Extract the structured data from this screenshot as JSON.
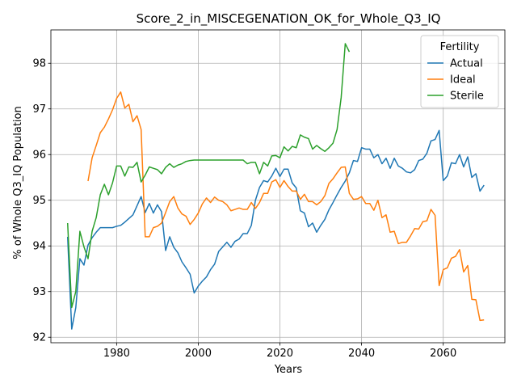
{
  "chart_data": {
    "type": "line",
    "title": "Score_2_in_MISCEGENATION_OK_for_Whole_Q3_IQ",
    "xlabel": "Years",
    "ylabel": "% of Whole Q3_IQ Population",
    "xlim": [
      1963.9,
      2075.1
    ],
    "ylim": [
      91.88,
      98.73
    ],
    "xticks": [
      1980,
      2000,
      2020,
      2040,
      2060
    ],
    "yticks": [
      92,
      93,
      94,
      95,
      96,
      97,
      98
    ],
    "grid": true,
    "legend": {
      "title": "Fertility",
      "position": "top-right"
    },
    "colors": {
      "Actual": "#1f77b4",
      "Ideal": "#ff7f0e",
      "Sterile": "#2ca02c"
    },
    "series": [
      {
        "name": "Actual",
        "x": [
          1968,
          1969,
          1970,
          1971,
          1972,
          1973,
          1974,
          1975,
          1976,
          1977,
          1978,
          1979,
          1980,
          1981,
          1982,
          1983,
          1984,
          1985,
          1986,
          1987,
          1988,
          1989,
          1990,
          1991,
          1992,
          1993,
          1994,
          1995,
          1996,
          1997,
          1998,
          1999,
          2000,
          2001,
          2002,
          2003,
          2004,
          2005,
          2006,
          2007,
          2008,
          2009,
          2010,
          2011,
          2012,
          2013,
          2014,
          2015,
          2016,
          2017,
          2018,
          2019,
          2020,
          2021,
          2022,
          2023,
          2024,
          2025,
          2026,
          2027,
          2028,
          2029,
          2030,
          2031,
          2032,
          2033,
          2034,
          2035,
          2036,
          2037,
          2038,
          2039,
          2040,
          2041,
          2042,
          2043,
          2044,
          2045,
          2046,
          2047,
          2048,
          2049,
          2050,
          2051,
          2052,
          2053,
          2054,
          2055,
          2056,
          2057,
          2058,
          2059,
          2060,
          2061,
          2062,
          2063,
          2064,
          2065,
          2066,
          2067,
          2068,
          2069,
          2070
        ],
        "values": [
          94.2,
          92.18,
          92.65,
          93.72,
          93.58,
          94.02,
          94.18,
          94.3,
          94.4,
          94.4,
          94.4,
          94.4,
          94.43,
          94.45,
          94.52,
          94.6,
          94.68,
          94.88,
          95.08,
          94.73,
          94.93,
          94.72,
          94.9,
          94.75,
          93.9,
          94.2,
          93.97,
          93.85,
          93.65,
          93.52,
          93.38,
          92.97,
          93.12,
          93.23,
          93.32,
          93.48,
          93.6,
          93.88,
          93.98,
          94.08,
          93.97,
          94.1,
          94.15,
          94.27,
          94.27,
          94.45,
          95.0,
          95.28,
          95.43,
          95.4,
          95.53,
          95.7,
          95.52,
          95.68,
          95.68,
          95.38,
          95.27,
          94.77,
          94.72,
          94.42,
          94.5,
          94.3,
          94.45,
          94.58,
          94.79,
          94.95,
          95.12,
          95.28,
          95.42,
          95.6,
          95.87,
          95.85,
          96.15,
          96.12,
          96.12,
          95.93,
          96.0,
          95.8,
          95.92,
          95.7,
          95.92,
          95.75,
          95.7,
          95.62,
          95.6,
          95.67,
          95.87,
          95.9,
          96.03,
          96.3,
          96.33,
          96.53,
          95.43,
          95.53,
          95.82,
          95.8,
          96.0,
          95.73,
          95.95,
          95.5,
          95.58,
          95.2,
          95.33
        ]
      },
      {
        "name": "Ideal",
        "x": [
          1973,
          1974,
          1975,
          1976,
          1977,
          1978,
          1979,
          1980,
          1981,
          1982,
          1983,
          1984,
          1985,
          1986,
          1987,
          1988,
          1989,
          1990,
          1991,
          1992,
          1993,
          1994,
          1995,
          1996,
          1997,
          1998,
          1999,
          2000,
          2001,
          2002,
          2003,
          2004,
          2005,
          2006,
          2007,
          2008,
          2009,
          2010,
          2011,
          2012,
          2013,
          2014,
          2015,
          2016,
          2017,
          2018,
          2019,
          2020,
          2021,
          2022,
          2023,
          2024,
          2025,
          2026,
          2027,
          2028,
          2029,
          2030,
          2031,
          2032,
          2033,
          2034,
          2035,
          2036,
          2037,
          2038,
          2039,
          2040,
          2041,
          2042,
          2043,
          2044,
          2045,
          2046,
          2047,
          2048,
          2049,
          2050,
          2051,
          2052,
          2053,
          2054,
          2055,
          2056,
          2057,
          2058,
          2059,
          2060,
          2061,
          2062,
          2063,
          2064,
          2065,
          2066,
          2067,
          2068,
          2069,
          2070
        ],
        "values": [
          95.42,
          95.93,
          96.2,
          96.48,
          96.6,
          96.78,
          96.98,
          97.23,
          97.37,
          97.02,
          97.1,
          96.72,
          96.85,
          96.55,
          94.2,
          94.2,
          94.4,
          94.43,
          94.5,
          94.73,
          94.97,
          95.08,
          94.83,
          94.7,
          94.65,
          94.47,
          94.58,
          94.72,
          94.92,
          95.05,
          94.95,
          95.07,
          95.0,
          94.97,
          94.9,
          94.77,
          94.8,
          94.83,
          94.8,
          94.8,
          94.95,
          94.82,
          94.95,
          95.15,
          95.15,
          95.4,
          95.45,
          95.28,
          95.43,
          95.3,
          95.2,
          95.2,
          95.02,
          95.13,
          94.97,
          94.97,
          94.9,
          94.97,
          95.1,
          95.37,
          95.47,
          95.6,
          95.72,
          95.73,
          95.15,
          95.02,
          95.03,
          95.08,
          94.93,
          94.93,
          94.78,
          95.0,
          94.62,
          94.68,
          94.3,
          94.32,
          94.05,
          94.08,
          94.08,
          94.22,
          94.38,
          94.37,
          94.53,
          94.55,
          94.8,
          94.67,
          93.13,
          93.48,
          93.52,
          93.73,
          93.77,
          93.92,
          93.43,
          93.57,
          92.83,
          92.82,
          92.37,
          92.38
        ]
      },
      {
        "name": "Sterile",
        "x": [
          1968,
          1969,
          1970,
          1971,
          1972,
          1973,
          1974,
          1975,
          1976,
          1977,
          1978,
          1979,
          1980,
          1981,
          1982,
          1983,
          1984,
          1985,
          1986,
          1987,
          1988,
          1989,
          1990,
          1991,
          1992,
          1993,
          1994,
          1995,
          1996,
          1997,
          1998,
          1999,
          2000,
          2001,
          2002,
          2003,
          2004,
          2005,
          2006,
          2007,
          2008,
          2009,
          2010,
          2011,
          2012,
          2013,
          2014,
          2015,
          2016,
          2017,
          2018,
          2019,
          2020,
          2021,
          2022,
          2023,
          2024,
          2025,
          2026,
          2027,
          2028,
          2029,
          2030,
          2031,
          2032,
          2033,
          2034,
          2035,
          2036,
          2037
        ],
        "values": [
          94.5,
          92.65,
          93.0,
          94.32,
          93.98,
          93.72,
          94.32,
          94.62,
          95.12,
          95.35,
          95.12,
          95.38,
          95.75,
          95.75,
          95.53,
          95.73,
          95.72,
          95.83,
          95.4,
          95.55,
          95.73,
          95.7,
          95.67,
          95.58,
          95.72,
          95.8,
          95.72,
          95.77,
          95.8,
          95.85,
          95.87,
          95.88,
          95.88,
          95.88,
          95.88,
          95.88,
          95.88,
          95.88,
          95.88,
          95.88,
          95.88,
          95.88,
          95.88,
          95.88,
          95.8,
          95.83,
          95.83,
          95.58,
          95.83,
          95.75,
          95.97,
          95.98,
          95.93,
          96.17,
          96.08,
          96.18,
          96.15,
          96.43,
          96.38,
          96.35,
          96.12,
          96.2,
          96.13,
          96.07,
          96.15,
          96.25,
          96.55,
          97.25,
          98.43,
          98.25
        ]
      }
    ]
  }
}
